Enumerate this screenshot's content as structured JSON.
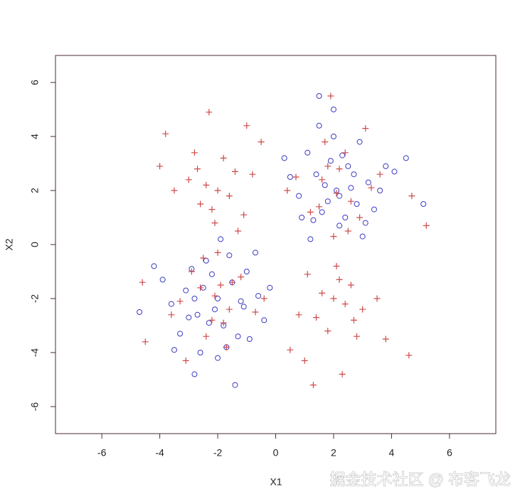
{
  "chart_data": {
    "type": "scatter",
    "xlabel": "X1",
    "ylabel": "X2",
    "watermark": "掘金技术社区 @ 布客飞龙",
    "xlim": [
      -7.6,
      7.6
    ],
    "ylim": [
      -7,
      7
    ],
    "xticks": [
      -6,
      -4,
      -2,
      0,
      2,
      4,
      6
    ],
    "yticks": [
      -6,
      -4,
      -2,
      0,
      2,
      4,
      6
    ],
    "series": [
      {
        "color": "#3b3bc4",
        "marker": "circle",
        "x": [
          2.1,
          1.4,
          2.8,
          1.9,
          3.2,
          0.8,
          2.5,
          1.6,
          2.2,
          3.6,
          1.1,
          2.9,
          1.7,
          2.4,
          0.5,
          3.0,
          1.3,
          2.0,
          2.7,
          4.1,
          1.8,
          2.3,
          0.9,
          3.4,
          1.5,
          2.6,
          2.0,
          4.5,
          1.2,
          3.8,
          2.2,
          0.3,
          1.5,
          5.1,
          3.1,
          -2.0,
          -1.5,
          -2.7,
          -2.2,
          -1.1,
          -3.1,
          -1.8,
          -2.4,
          -0.6,
          -3.6,
          -1.3,
          -2.9,
          -2.1,
          -1.7,
          -4.7,
          -0.4,
          -2.5,
          -3.3,
          -1.0,
          -2.0,
          -2.8,
          -1.6,
          -3.9,
          -0.9,
          -2.3,
          -1.2,
          -4.2,
          -2.6,
          -0.2,
          -1.9,
          -3.0,
          -1.4,
          -2.8,
          -3.5,
          -0.7
        ],
        "values": [
          2.0,
          2.6,
          1.5,
          3.1,
          2.3,
          1.8,
          2.9,
          1.2,
          0.7,
          2.0,
          3.4,
          3.8,
          2.2,
          1.0,
          2.5,
          0.3,
          0.9,
          4.0,
          2.6,
          2.7,
          1.6,
          3.3,
          1.0,
          1.3,
          4.4,
          2.1,
          5.0,
          3.2,
          0.2,
          2.9,
          1.8,
          3.2,
          5.5,
          1.5,
          0.8,
          -2.0,
          -1.4,
          -2.6,
          -1.1,
          -2.3,
          -1.7,
          -3.0,
          -0.6,
          -1.9,
          -2.2,
          -3.4,
          -0.9,
          -2.4,
          -3.8,
          -2.5,
          -2.8,
          -1.6,
          -3.3,
          -1.0,
          -4.2,
          -2.0,
          -0.4,
          -1.3,
          -3.5,
          -2.9,
          -2.1,
          -0.8,
          -4.0,
          -1.6,
          0.2,
          -2.7,
          -5.2,
          -4.8,
          -3.9,
          -0.3
        ]
      },
      {
        "color": "#d04848",
        "marker": "plus",
        "x": [
          -2.0,
          -1.4,
          -2.6,
          -1.8,
          -3.0,
          -1.1,
          -2.3,
          -3.5,
          -0.8,
          -2.1,
          -2.8,
          -1.6,
          -3.8,
          -2.4,
          -1.0,
          -2.2,
          -4.0,
          -1.3,
          -2.7,
          -0.5,
          2.0,
          1.4,
          2.6,
          1.8,
          3.0,
          1.1,
          2.3,
          3.5,
          0.8,
          2.1,
          2.8,
          1.6,
          3.8,
          2.4,
          1.0,
          2.2,
          4.6,
          1.3,
          2.7,
          0.5,
          2.1,
          1.6,
          2.6,
          1.8,
          3.3,
          1.2,
          2.4,
          0.7,
          2.9,
          1.9,
          4.7,
          5.2,
          1.7,
          2.5,
          3.1,
          0.4,
          2.2,
          1.5,
          3.6,
          2.0,
          -2.1,
          -1.6,
          -2.6,
          -1.8,
          -3.3,
          -1.2,
          -2.4,
          -0.7,
          -2.9,
          -1.9,
          -4.5,
          -4.6,
          -1.7,
          -2.5,
          -3.1,
          -0.4,
          -2.2,
          -1.5,
          -3.6,
          -2.0
        ],
        "values": [
          2.0,
          2.7,
          1.5,
          3.2,
          2.4,
          1.1,
          4.9,
          2.0,
          2.6,
          0.8,
          3.4,
          1.8,
          4.1,
          2.2,
          4.4,
          1.3,
          2.9,
          0.5,
          2.8,
          3.8,
          -2.0,
          -2.7,
          -1.5,
          -3.2,
          -2.4,
          -1.1,
          -4.8,
          -2.0,
          -2.6,
          -0.8,
          -3.4,
          -1.8,
          -3.5,
          -2.2,
          -4.3,
          -1.3,
          -4.1,
          -5.2,
          -2.8,
          -3.9,
          1.9,
          2.4,
          1.6,
          2.9,
          2.1,
          1.2,
          3.4,
          2.5,
          1.0,
          5.5,
          1.8,
          0.7,
          3.8,
          0.5,
          4.3,
          2.0,
          2.8,
          1.4,
          2.6,
          0.3,
          -1.9,
          -2.4,
          -1.6,
          -2.9,
          -2.1,
          -1.2,
          -3.4,
          -2.5,
          -1.0,
          -1.5,
          -3.6,
          -1.4,
          -3.8,
          -0.5,
          -4.3,
          -2.0,
          -2.8,
          -1.4,
          -2.6,
          -0.3
        ]
      }
    ]
  }
}
